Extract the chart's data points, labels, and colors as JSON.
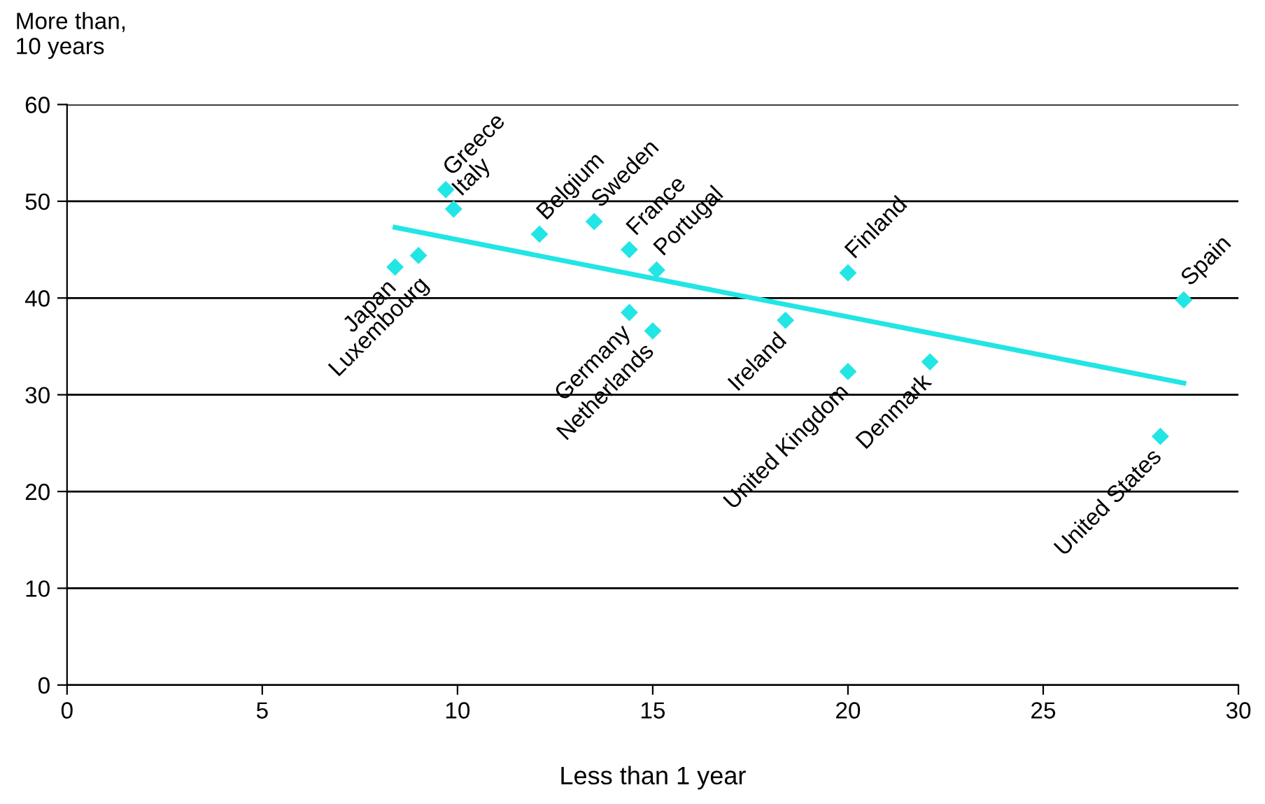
{
  "chart_data": {
    "type": "scatter",
    "xlabel": "Less than 1 year",
    "ylabel": "More than,\n10 years",
    "xlim": [
      0,
      30
    ],
    "xticks": [
      0,
      5,
      10,
      15,
      20,
      25,
      30
    ],
    "ylim": [
      0,
      60
    ],
    "yticks": [
      0,
      10,
      20,
      30,
      40,
      50,
      60
    ],
    "grid": "y",
    "marker": "diamond",
    "legend": false,
    "series": [
      {
        "color": "#22e5e5",
        "x": [
          9.7,
          9.9,
          8.4,
          9.0,
          12.1,
          13.5,
          14.4,
          15.1,
          14.4,
          15.0,
          18.4,
          20.0,
          20.0,
          22.1,
          28.0,
          28.6
        ],
        "values": [
          51.2,
          49.2,
          43.2,
          44.4,
          46.6,
          47.9,
          45.0,
          42.9,
          38.5,
          36.6,
          37.7,
          42.6,
          32.4,
          33.4,
          25.7,
          39.8
        ]
      },
      {
        "type": "line",
        "color": "#22e5e5",
        "marker": "none",
        "line_style": "solid",
        "x": [
          8.4,
          28.6
        ],
        "values": [
          47.3,
          31.2
        ]
      }
    ],
    "annotations": [
      {
        "text": "Greece",
        "x": 9.7,
        "y": 51.2
      },
      {
        "text": "Italy",
        "x": 9.9,
        "y": 49.2
      },
      {
        "text": "Japan",
        "x": 8.4,
        "y": 43.2
      },
      {
        "text": "Luxembourg",
        "x": 9.0,
        "y": 44.4
      },
      {
        "text": "Belgium",
        "x": 12.1,
        "y": 46.6
      },
      {
        "text": "Sweden",
        "x": 13.5,
        "y": 47.9
      },
      {
        "text": "France",
        "x": 14.4,
        "y": 45.0
      },
      {
        "text": "Portugal",
        "x": 15.1,
        "y": 42.9
      },
      {
        "text": "Germany",
        "x": 14.4,
        "y": 38.5
      },
      {
        "text": "Netherlands",
        "x": 15.0,
        "y": 36.6
      },
      {
        "text": "Ireland",
        "x": 18.4,
        "y": 37.7
      },
      {
        "text": "Finland",
        "x": 20.0,
        "y": 42.6
      },
      {
        "text": "United Kingdom",
        "x": 20.0,
        "y": 32.4
      },
      {
        "text": "Denmark",
        "x": 22.1,
        "y": 33.4
      },
      {
        "text": "United States",
        "x": 28.0,
        "y": 25.7
      },
      {
        "text": "Spain",
        "x": 28.6,
        "y": 39.8
      }
    ]
  }
}
